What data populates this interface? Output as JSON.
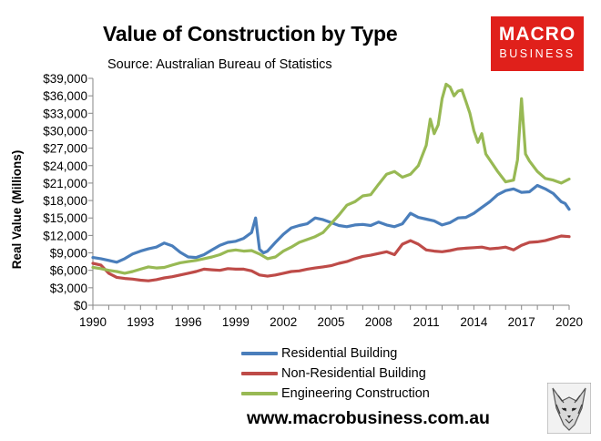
{
  "header": {
    "title": "Value of Construction by Type",
    "subtitle": "Source: Australian Bureau of Statistics",
    "logo_line1": "MACRO",
    "logo_line2": "BUSINESS"
  },
  "footer": {
    "website": "www.macrobusiness.com.au"
  },
  "colors": {
    "residential": "#4a7ebb",
    "non_residential": "#be4b48",
    "engineering": "#98b954",
    "logo_red": "#e0201b"
  },
  "chart_data": {
    "type": "line",
    "title": "Value of Construction by Type",
    "subtitle": "Source: Australian Bureau of Statistics",
    "xlabel": "",
    "ylabel": "Real Value (Millions)",
    "xlim": [
      1990,
      2020
    ],
    "ylim": [
      0,
      39000
    ],
    "xticks": [
      "1990",
      "1993",
      "1996",
      "1999",
      "2002",
      "2005",
      "2008",
      "2011",
      "2014",
      "2017",
      "2020"
    ],
    "yticks": [
      "$0",
      "$3,000",
      "$6,000",
      "$9,000",
      "$12,000",
      "$15,000",
      "$18,000",
      "$21,000",
      "$24,000",
      "$27,000",
      "$30,000",
      "$33,000",
      "$36,000",
      "$39,000"
    ],
    "grid": false,
    "legend_position": "bottom",
    "series": [
      {
        "name": "Residential Building",
        "color": "#4a7ebb",
        "points": [
          [
            1990,
            8200
          ],
          [
            1990.5,
            8000
          ],
          [
            1991,
            7700
          ],
          [
            1991.5,
            7400
          ],
          [
            1992,
            8000
          ],
          [
            1992.5,
            8800
          ],
          [
            1993,
            9300
          ],
          [
            1993.5,
            9700
          ],
          [
            1994,
            10000
          ],
          [
            1994.5,
            10700
          ],
          [
            1995,
            10200
          ],
          [
            1995.5,
            9100
          ],
          [
            1996,
            8300
          ],
          [
            1996.5,
            8200
          ],
          [
            1997,
            8700
          ],
          [
            1997.5,
            9500
          ],
          [
            1998,
            10300
          ],
          [
            1998.5,
            10800
          ],
          [
            1999,
            11000
          ],
          [
            1999.5,
            11500
          ],
          [
            2000,
            12500
          ],
          [
            2000.25,
            15000
          ],
          [
            2000.5,
            9600
          ],
          [
            2000.75,
            9000
          ],
          [
            2001,
            9300
          ],
          [
            2001.5,
            10800
          ],
          [
            2002,
            12200
          ],
          [
            2002.5,
            13300
          ],
          [
            2003,
            13700
          ],
          [
            2003.5,
            14000
          ],
          [
            2004,
            15000
          ],
          [
            2004.5,
            14700
          ],
          [
            2005,
            14200
          ],
          [
            2005.5,
            13700
          ],
          [
            2006,
            13500
          ],
          [
            2006.5,
            13800
          ],
          [
            2007,
            13900
          ],
          [
            2007.5,
            13700
          ],
          [
            2008,
            14300
          ],
          [
            2008.5,
            13800
          ],
          [
            2009,
            13500
          ],
          [
            2009.5,
            14000
          ],
          [
            2010,
            15800
          ],
          [
            2010.5,
            15100
          ],
          [
            2011,
            14800
          ],
          [
            2011.5,
            14500
          ],
          [
            2012,
            13800
          ],
          [
            2012.5,
            14200
          ],
          [
            2013,
            15000
          ],
          [
            2013.5,
            15100
          ],
          [
            2014,
            15800
          ],
          [
            2014.5,
            16800
          ],
          [
            2015,
            17800
          ],
          [
            2015.5,
            19000
          ],
          [
            2016,
            19700
          ],
          [
            2016.5,
            20000
          ],
          [
            2017,
            19400
          ],
          [
            2017.5,
            19500
          ],
          [
            2018,
            20600
          ],
          [
            2018.5,
            20000
          ],
          [
            2019,
            19200
          ],
          [
            2019.5,
            17800
          ],
          [
            2019.75,
            17500
          ],
          [
            2020,
            16500
          ]
        ]
      },
      {
        "name": "Non-Residential Building",
        "color": "#be4b48",
        "points": [
          [
            1990,
            7200
          ],
          [
            1990.5,
            6900
          ],
          [
            1991,
            5500
          ],
          [
            1991.5,
            4800
          ],
          [
            1992,
            4600
          ],
          [
            1992.5,
            4500
          ],
          [
            1993,
            4300
          ],
          [
            1993.5,
            4200
          ],
          [
            1994,
            4400
          ],
          [
            1994.5,
            4700
          ],
          [
            1995,
            4900
          ],
          [
            1995.5,
            5200
          ],
          [
            1996,
            5500
          ],
          [
            1996.5,
            5800
          ],
          [
            1997,
            6200
          ],
          [
            1997.5,
            6100
          ],
          [
            1998,
            6000
          ],
          [
            1998.5,
            6300
          ],
          [
            1999,
            6200
          ],
          [
            1999.5,
            6200
          ],
          [
            2000,
            5900
          ],
          [
            2000.5,
            5200
          ],
          [
            2001,
            5000
          ],
          [
            2001.5,
            5200
          ],
          [
            2002,
            5500
          ],
          [
            2002.5,
            5800
          ],
          [
            2003,
            5900
          ],
          [
            2003.5,
            6200
          ],
          [
            2004,
            6400
          ],
          [
            2004.5,
            6600
          ],
          [
            2005,
            6800
          ],
          [
            2005.5,
            7200
          ],
          [
            2006,
            7500
          ],
          [
            2006.5,
            8000
          ],
          [
            2007,
            8400
          ],
          [
            2007.5,
            8600
          ],
          [
            2008,
            8900
          ],
          [
            2008.5,
            9200
          ],
          [
            2009,
            8700
          ],
          [
            2009.5,
            10500
          ],
          [
            2010,
            11100
          ],
          [
            2010.5,
            10500
          ],
          [
            2011,
            9500
          ],
          [
            2011.5,
            9300
          ],
          [
            2012,
            9200
          ],
          [
            2012.5,
            9400
          ],
          [
            2013,
            9700
          ],
          [
            2013.5,
            9800
          ],
          [
            2014,
            9900
          ],
          [
            2014.5,
            10000
          ],
          [
            2015,
            9700
          ],
          [
            2015.5,
            9800
          ],
          [
            2016,
            10000
          ],
          [
            2016.5,
            9500
          ],
          [
            2017,
            10300
          ],
          [
            2017.5,
            10800
          ],
          [
            2018,
            10900
          ],
          [
            2018.5,
            11100
          ],
          [
            2019,
            11500
          ],
          [
            2019.5,
            11900
          ],
          [
            2020,
            11800
          ]
        ]
      },
      {
        "name": "Engineering Construction",
        "color": "#98b954",
        "points": [
          [
            1990,
            6500
          ],
          [
            1990.5,
            6300
          ],
          [
            1991,
            6000
          ],
          [
            1991.5,
            5800
          ],
          [
            1992,
            5500
          ],
          [
            1992.5,
            5800
          ],
          [
            1993,
            6200
          ],
          [
            1993.5,
            6600
          ],
          [
            1994,
            6400
          ],
          [
            1994.5,
            6500
          ],
          [
            1995,
            6900
          ],
          [
            1995.5,
            7300
          ],
          [
            1996,
            7500
          ],
          [
            1996.5,
            7700
          ],
          [
            1997,
            8000
          ],
          [
            1997.5,
            8300
          ],
          [
            1998,
            8700
          ],
          [
            1998.5,
            9300
          ],
          [
            1999,
            9500
          ],
          [
            1999.5,
            9300
          ],
          [
            2000,
            9400
          ],
          [
            2000.5,
            8800
          ],
          [
            2001,
            8000
          ],
          [
            2001.5,
            8300
          ],
          [
            2002,
            9300
          ],
          [
            2002.5,
            10000
          ],
          [
            2003,
            10800
          ],
          [
            2003.5,
            11300
          ],
          [
            2004,
            11800
          ],
          [
            2004.5,
            12500
          ],
          [
            2005,
            14000
          ],
          [
            2005.5,
            15500
          ],
          [
            2006,
            17200
          ],
          [
            2006.5,
            17800
          ],
          [
            2007,
            18800
          ],
          [
            2007.5,
            19000
          ],
          [
            2008,
            20800
          ],
          [
            2008.5,
            22500
          ],
          [
            2009,
            23000
          ],
          [
            2009.5,
            22000
          ],
          [
            2010,
            22500
          ],
          [
            2010.5,
            24000
          ],
          [
            2011,
            27500
          ],
          [
            2011.25,
            32000
          ],
          [
            2011.5,
            29500
          ],
          [
            2011.75,
            31000
          ],
          [
            2012,
            35500
          ],
          [
            2012.25,
            38000
          ],
          [
            2012.5,
            37500
          ],
          [
            2012.75,
            36000
          ],
          [
            2013,
            36800
          ],
          [
            2013.25,
            37000
          ],
          [
            2013.5,
            35000
          ],
          [
            2013.75,
            33000
          ],
          [
            2014,
            30000
          ],
          [
            2014.25,
            28000
          ],
          [
            2014.5,
            29500
          ],
          [
            2014.75,
            26000
          ],
          [
            2015,
            25000
          ],
          [
            2015.5,
            23000
          ],
          [
            2016,
            21200
          ],
          [
            2016.5,
            21500
          ],
          [
            2016.75,
            25000
          ],
          [
            2017,
            35500
          ],
          [
            2017.25,
            26000
          ],
          [
            2017.5,
            24800
          ],
          [
            2018,
            23000
          ],
          [
            2018.5,
            21800
          ],
          [
            2019,
            21500
          ],
          [
            2019.5,
            21000
          ],
          [
            2020,
            21700
          ]
        ]
      }
    ]
  }
}
